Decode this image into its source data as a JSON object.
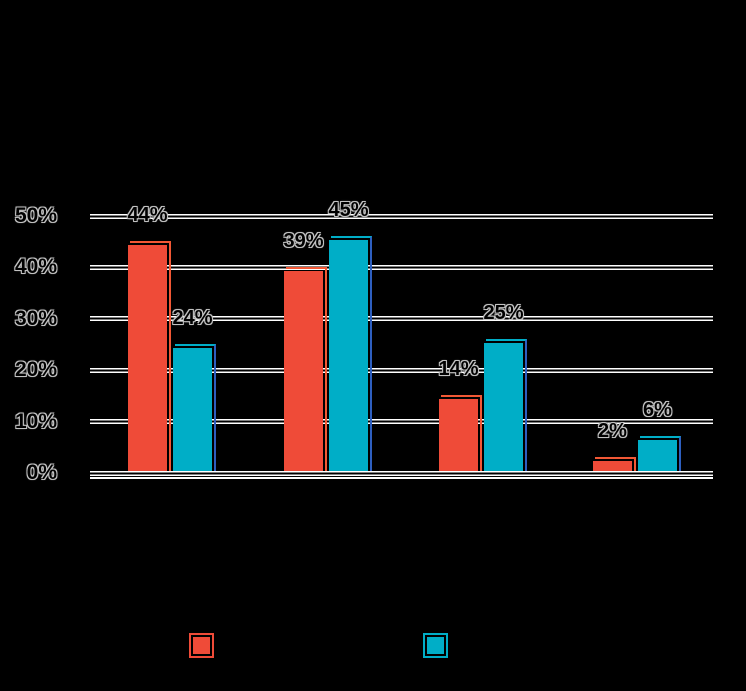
{
  "canvas": {
    "background": "#000000"
  },
  "chart_data": {
    "type": "bar",
    "title": "",
    "xlabel": "",
    "ylabel": "",
    "ylim": [
      0,
      50
    ],
    "grid": true,
    "gridline_color": "#ffffff",
    "label_halo_color": "#c2c2c2",
    "y_ticks": [
      "50%",
      "40%",
      "30%",
      "20%",
      "10%",
      "0%"
    ],
    "groups": 4,
    "series": [
      {
        "name": "red-series",
        "color": "#ef4b38",
        "outline_top_color": "#f25835",
        "outline_right_color": "#f25835",
        "values": [
          44,
          39,
          14,
          2
        ],
        "labels": [
          "44%",
          "39%",
          "14%",
          "2%"
        ]
      },
      {
        "name": "teal-series",
        "color": "#00aec7",
        "outline_top_color": "#00aec7",
        "outline_right_color": "#2e5fc0",
        "values": [
          24,
          45,
          25,
          6
        ],
        "labels": [
          "24%",
          "45%",
          "25%",
          "6%"
        ]
      }
    ],
    "legend_position": "bottom",
    "legend_swatches": [
      {
        "color": "#ef4b38"
      },
      {
        "color": "#00aec7"
      }
    ]
  }
}
